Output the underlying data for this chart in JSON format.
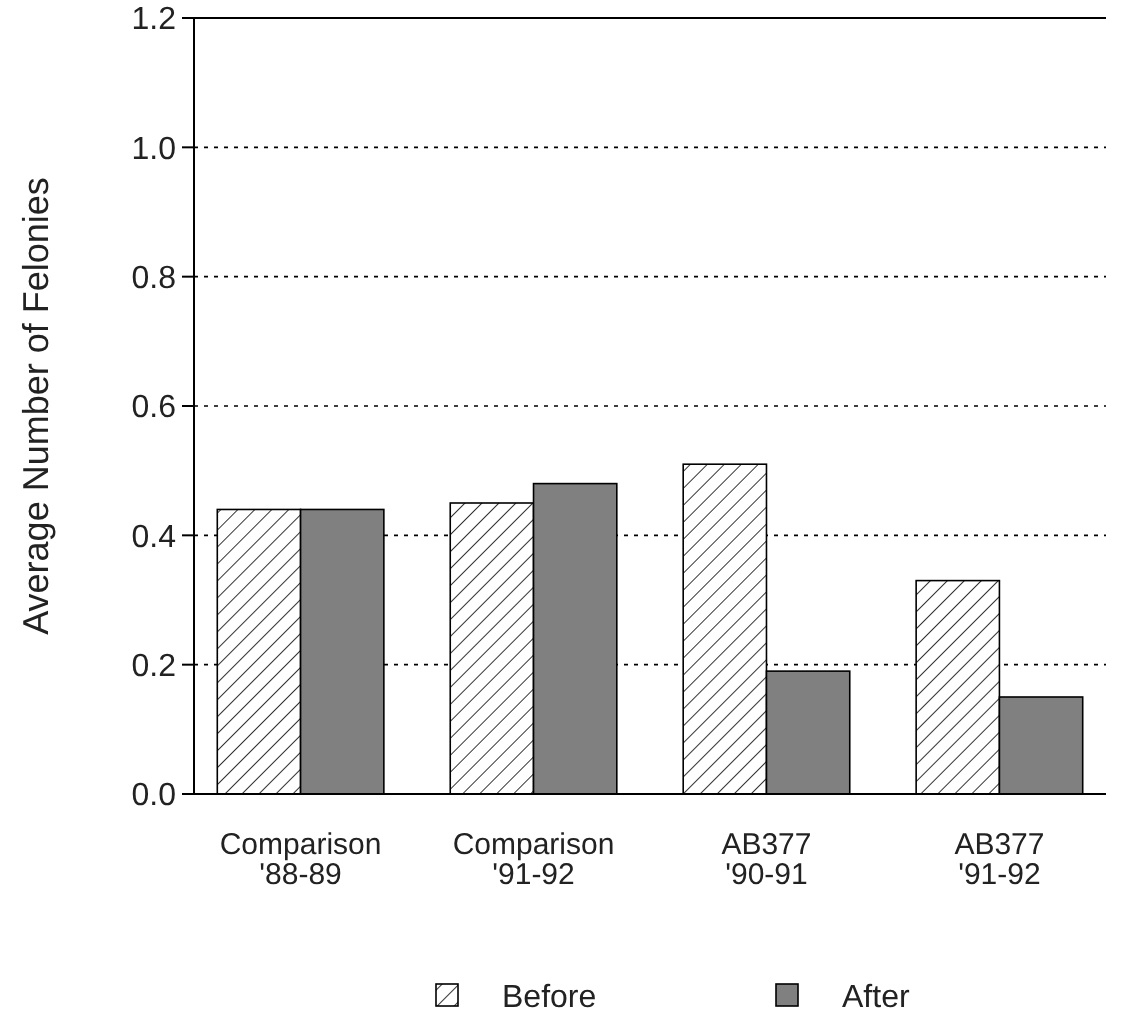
{
  "chart_data": {
    "type": "bar",
    "ylabel": "Average Number of Felonies",
    "categories": [
      "Comparison\n'88-89",
      "Comparison\n'91-92",
      "AB377\n'90-91",
      "AB377\n'91-92"
    ],
    "series": [
      {
        "name": "Before",
        "color": "#000000",
        "values": [
          0.44,
          0.45,
          0.51,
          0.33
        ]
      },
      {
        "name": "After",
        "color": "#808080",
        "values": [
          0.44,
          0.48,
          0.19,
          0.15
        ]
      }
    ],
    "ylim": [
      0,
      1.2
    ],
    "yticks": [
      {
        "value": 0,
        "label": "0.0"
      },
      {
        "value": 0.2,
        "label": "0.2"
      },
      {
        "value": 0.4,
        "label": "0.4"
      },
      {
        "value": 0.6,
        "label": "0.6"
      },
      {
        "value": 0.8,
        "label": "0.8"
      },
      {
        "value": 1,
        "label": "1.0"
      },
      {
        "value": 1.2,
        "label": "1.2"
      }
    ],
    "grid": "y",
    "legend": "bottom"
  }
}
